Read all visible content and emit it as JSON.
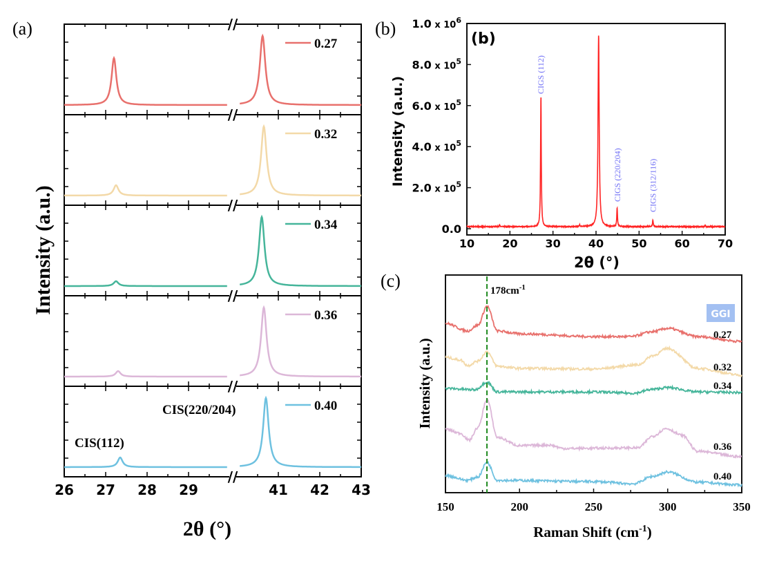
{
  "chart_data": [
    {
      "panel_label": "(a)",
      "type": "line",
      "ylabel": "Intensity (a.u.)",
      "xlabel": "2θ (°)",
      "x_segments": [
        [
          26,
          30
        ],
        [
          40,
          43
        ]
      ],
      "x_broken_axis": true,
      "xticks": [
        26,
        27,
        28,
        29,
        41,
        42,
        43
      ],
      "xtick_labels": [
        "26",
        "27",
        "28",
        "29",
        "41",
        "42",
        "43"
      ],
      "layout": "stacked-subplots",
      "legend_position": "top-right",
      "annotations": [
        {
          "text": "CIS(112)",
          "x": 27.4
        },
        {
          "text": "CIS(220/204)",
          "x": 40.7
        }
      ],
      "series": [
        {
          "name": "0.27",
          "color": "#e8706c",
          "peaks": [
            {
              "x": 27.2,
              "height": 0.68
            },
            {
              "x": 40.62,
              "height": 1.0
            }
          ]
        },
        {
          "name": "0.32",
          "color": "#f3d9a8",
          "peaks": [
            {
              "x": 27.25,
              "height": 0.15
            },
            {
              "x": 40.65,
              "height": 1.0
            }
          ]
        },
        {
          "name": "0.34",
          "color": "#45b59a",
          "peaks": [
            {
              "x": 27.25,
              "height": 0.07
            },
            {
              "x": 40.6,
              "height": 1.0
            }
          ]
        },
        {
          "name": "0.36",
          "color": "#dcb7d8",
          "peaks": [
            {
              "x": 27.3,
              "height": 0.08
            },
            {
              "x": 40.65,
              "height": 1.0
            }
          ]
        },
        {
          "name": "0.40",
          "color": "#6ec1e0",
          "peaks": [
            {
              "x": 27.35,
              "height": 0.14
            },
            {
              "x": 40.7,
              "height": 1.0
            }
          ]
        }
      ]
    },
    {
      "panel_label": "(b)",
      "inner_label": "(b)",
      "type": "line",
      "xlabel": "2θ (°)",
      "ylabel": "Intensity (a.u.)",
      "xlim": [
        10,
        70
      ],
      "ylim": [
        0,
        1000000
      ],
      "xticks": [
        10,
        20,
        30,
        40,
        50,
        60,
        70
      ],
      "xtick_labels": [
        "10",
        "20",
        "30",
        "40",
        "50",
        "60",
        "70"
      ],
      "yticks": [
        0,
        200000,
        400000,
        600000,
        800000,
        1000000
      ],
      "ytick_labels": [
        {
          "mantissa": "0.0",
          "exp": ""
        },
        {
          "mantissa": "2.0",
          "exp": "5"
        },
        {
          "mantissa": "4.0",
          "exp": "5"
        },
        {
          "mantissa": "6.0",
          "exp": "5"
        },
        {
          "mantissa": "8.0",
          "exp": "5"
        },
        {
          "mantissa": "1.0",
          "exp": "6"
        }
      ],
      "times_sign": "x",
      "ten": "10",
      "color": "#ff2424",
      "annotation_color": "#6f6ff5",
      "baseline": 10000,
      "peaks": [
        {
          "x": 17.6,
          "y": 18000
        },
        {
          "x": 27.2,
          "y": 645000
        },
        {
          "x": 36.2,
          "y": 18000
        },
        {
          "x": 40.6,
          "y": 945000
        },
        {
          "x": 44.9,
          "y": 100000
        },
        {
          "x": 53.2,
          "y": 43000
        },
        {
          "x": 65.4,
          "y": 16000
        }
      ],
      "annotations": [
        {
          "text": "CIGS  (112)",
          "x": 27.2
        },
        {
          "text": "CIGS  (220/204)",
          "x": 45.0
        },
        {
          "text": "CIGS  (312/116)",
          "x": 53.2
        }
      ]
    },
    {
      "panel_label": "(c)",
      "type": "line",
      "xlabel": "Raman Shift (cm",
      "xlabel_sup": "-1",
      "xlabel_end": ")",
      "ylabel": "Intensity (a.u.)",
      "xlim": [
        150,
        350
      ],
      "xticks": [
        150,
        200,
        250,
        300,
        350
      ],
      "xtick_labels": [
        "150",
        "200",
        "250",
        "300",
        "350"
      ],
      "reference_line": {
        "x": 178,
        "label": "178cm",
        "label_sup": "-1",
        "color": "#1f8a1f",
        "style": "dashed"
      },
      "legend_title": "GGI",
      "legend_title_color": "#a3c0f2",
      "series": [
        {
          "name": "0.27",
          "color": "#e8706c",
          "x": [
            150,
            165,
            172,
            178,
            185,
            200,
            250,
            275,
            290,
            300,
            320,
            350
          ],
          "y": [
            77.8,
            74.3,
            77,
            85.7,
            74.3,
            73,
            71.7,
            71.7,
            74,
            75.5,
            71.7,
            69.5
          ]
        },
        {
          "name": "0.32",
          "color": "#f3d9a8",
          "x": [
            150,
            160,
            165,
            172,
            178,
            185,
            200,
            250,
            280,
            290,
            300,
            320,
            350
          ],
          "y": [
            62.2,
            61,
            58.4,
            60.5,
            64.8,
            58.1,
            57.1,
            56.8,
            58.7,
            63,
            66.3,
            57.1,
            54
          ]
        },
        {
          "name": "0.34",
          "color": "#45b59a",
          "x": [
            150,
            170,
            178,
            185,
            250,
            277,
            290,
            300,
            320,
            350
          ],
          "y": [
            47.9,
            47.3,
            50.8,
            46.3,
            46.3,
            45.7,
            47.5,
            48.3,
            46.3,
            46
          ]
        },
        {
          "name": "0.36",
          "color": "#dcb7d8",
          "x": [
            150,
            160,
            166,
            172,
            178,
            185,
            200,
            220,
            230,
            280,
            290,
            299,
            310,
            320,
            350
          ],
          "y": [
            29.2,
            27.3,
            24.1,
            30,
            42.9,
            25.4,
            21.6,
            21.9,
            20.3,
            20.6,
            26,
            29.5,
            26.3,
            19,
            16.5
          ]
        },
        {
          "name": "0.40",
          "color": "#6ec1e0",
          "x": [
            150,
            165,
            172,
            178,
            185,
            250,
            277,
            290,
            300,
            320,
            350
          ],
          "y": [
            7.9,
            5.7,
            7.3,
            14,
            5.7,
            5.1,
            4.1,
            7.5,
            9.5,
            4.8,
            3.5
          ]
        }
      ]
    }
  ]
}
